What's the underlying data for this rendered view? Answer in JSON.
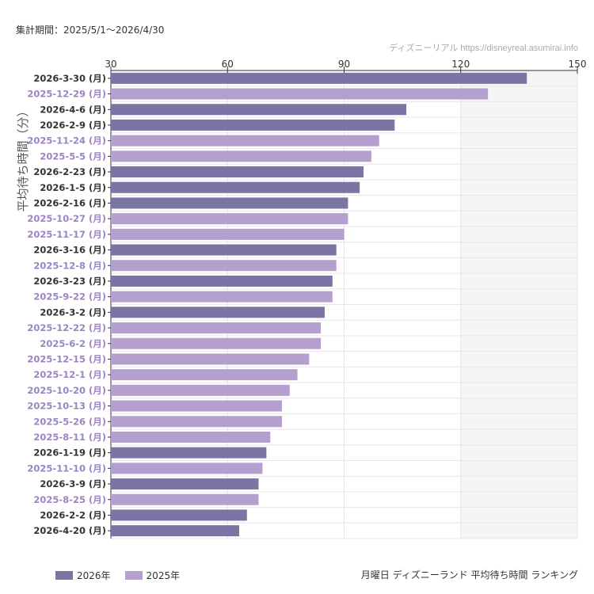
{
  "period_label": "集計期間：2025/5/1～2026/4/30",
  "credit": "ディズニーリアル https://disneyreal.asumirai.info",
  "footer_title": "月曜日 ディズニーランド 平均待ち時間 ランキング",
  "colors": {
    "2026年": "#7b75a3",
    "2025年": "#b49fcf",
    "label2026": "#333333",
    "label2025": "#9c84c4",
    "shade": "#f5f5f5"
  },
  "chart_data": {
    "type": "bar",
    "orientation": "horizontal",
    "ylabel": "平均待ち時間（分）",
    "xlim": [
      30,
      150
    ],
    "xticks": [
      30,
      60,
      90,
      120,
      150
    ],
    "grid": true,
    "shaded_range": [
      120,
      150
    ],
    "legend": {
      "position": "bottom-left",
      "entries": [
        "2026年",
        "2025年"
      ]
    },
    "categories": [
      "2026-3-30 (月)",
      "2025-12-29 (月)",
      "2026-4-6 (月)",
      "2026-2-9 (月)",
      "2025-11-24 (月)",
      "2025-5-5 (月)",
      "2026-2-23 (月)",
      "2026-1-5 (月)",
      "2026-2-16 (月)",
      "2025-10-27 (月)",
      "2025-11-17 (月)",
      "2026-3-16 (月)",
      "2025-12-8 (月)",
      "2026-3-23 (月)",
      "2025-9-22 (月)",
      "2026-3-2 (月)",
      "2025-12-22 (月)",
      "2025-6-2 (月)",
      "2025-12-15 (月)",
      "2025-12-1 (月)",
      "2025-10-20 (月)",
      "2025-10-13 (月)",
      "2025-5-26 (月)",
      "2025-8-11 (月)",
      "2026-1-19 (月)",
      "2025-11-10 (月)",
      "2026-3-9 (月)",
      "2025-8-25 (月)",
      "2026-2-2 (月)",
      "2026-4-20 (月)"
    ],
    "values": [
      137,
      127,
      106,
      103,
      99,
      97,
      95,
      94,
      91,
      91,
      90,
      88,
      88,
      87,
      87,
      85,
      84,
      84,
      81,
      78,
      76,
      74,
      74,
      71,
      70,
      69,
      68,
      68,
      65,
      63
    ],
    "series_of": [
      "2026年",
      "2025年",
      "2026年",
      "2026年",
      "2025年",
      "2025年",
      "2026年",
      "2026年",
      "2026年",
      "2025年",
      "2025年",
      "2026年",
      "2025年",
      "2026年",
      "2025年",
      "2026年",
      "2025年",
      "2025年",
      "2025年",
      "2025年",
      "2025年",
      "2025年",
      "2025年",
      "2025年",
      "2026年",
      "2025年",
      "2026年",
      "2025年",
      "2026年",
      "2026年"
    ]
  }
}
